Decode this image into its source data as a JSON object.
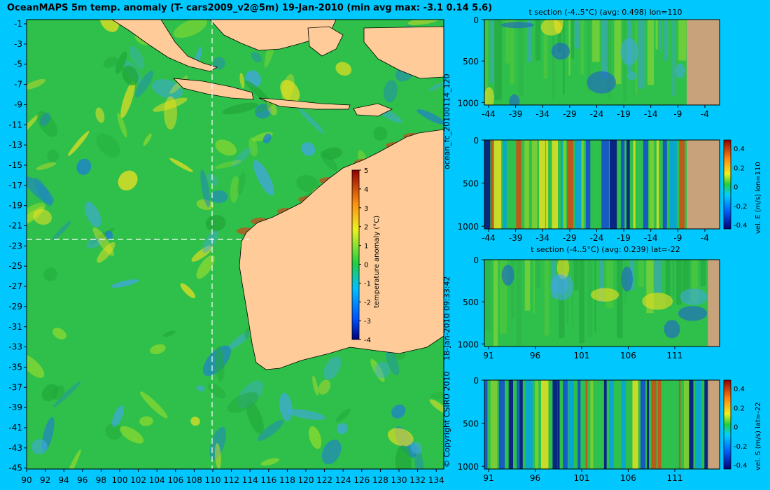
{
  "title": "OceanMAPS 5m temp. anomaly (T- cars2009_v2@5m) 19-Jan-2010 (min avg max: -3.1 0.14 5.6)",
  "colors": {
    "background": "#00c8ff",
    "land": "#ffcc99",
    "ocean_base": "#2ec04a",
    "cold": "#1e7fd0",
    "warm": "#f0e020",
    "hot": "#e83010",
    "section_land": "#c8a27a"
  },
  "map": {
    "lat_labels": [
      "-1",
      "-3",
      "-5",
      "-7",
      "-9",
      "-11",
      "-13",
      "-15",
      "-17",
      "-19",
      "-21",
      "-23",
      "-25",
      "-27",
      "-29",
      "-31",
      "-33",
      "-35",
      "-37",
      "-39",
      "-41",
      "-43",
      "-45"
    ],
    "lon_labels": [
      "90",
      "92",
      "94",
      "96",
      "98",
      "100",
      "102",
      "104",
      "106",
      "108",
      "110",
      "112",
      "114",
      "116",
      "118",
      "120",
      "122",
      "124",
      "126",
      "128",
      "130",
      "132",
      "134"
    ],
    "crosshair": {
      "lon": "110",
      "lat": "-22"
    },
    "colorbar": {
      "label": "temperature anomaly (°C)",
      "ticks": [
        "5",
        "4",
        "3",
        "2",
        "1",
        "0",
        "-1",
        "-2",
        "-3",
        "-4"
      ]
    }
  },
  "side_labels": {
    "forecast": "ocean_fc_20100114_120",
    "date": "18-Jan-2010 09:33:42",
    "copyright": "© Copyright CSIRO 2010"
  },
  "panels": [
    {
      "title": "t section (-4..5°C) (avg: 0.498) lon=110",
      "y_ticks": [
        "0",
        "500",
        "1000"
      ],
      "x_ticks": [
        "-44",
        "-39",
        "-34",
        "-29",
        "-24",
        "-19",
        "-14",
        "-9",
        "-4"
      ],
      "right_label": ""
    },
    {
      "title": "",
      "y_ticks": [
        "0",
        "500",
        "1000"
      ],
      "x_ticks": [
        "-44",
        "-39",
        "-34",
        "-29",
        "-24",
        "-19",
        "-14",
        "-9",
        "-4"
      ],
      "right_label": "vel. E (m/s) lon=110",
      "colorbar_ticks": [
        "0.4",
        "0.2",
        "0",
        "-0.2",
        "-0.4"
      ]
    },
    {
      "title": "t section (-4..5°C) (avg: 0.239) lat=-22",
      "y_ticks": [
        "0",
        "500",
        "1000"
      ],
      "x_ticks": [
        "91",
        "96",
        "101",
        "106",
        "111"
      ],
      "right_label": ""
    },
    {
      "title": "",
      "y_ticks": [
        "0",
        "500",
        "1000"
      ],
      "x_ticks": [
        "91",
        "96",
        "101",
        "106",
        "111"
      ],
      "right_label": "vel. S (m/s) lat=-22",
      "colorbar_ticks": [
        "0.4",
        "0.2",
        "0",
        "-0.2",
        "-0.4"
      ]
    }
  ]
}
